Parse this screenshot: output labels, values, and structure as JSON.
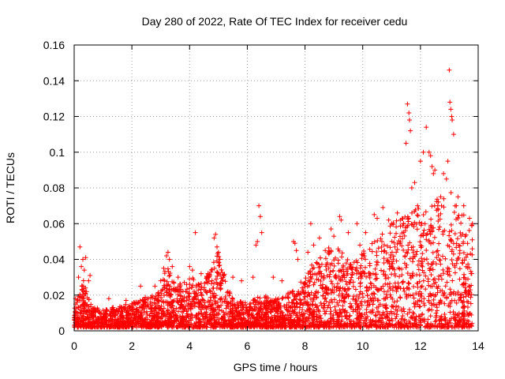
{
  "chart_data": {
    "type": "scatter",
    "title": "Day 280 of 2022, Rate Of TEC Index for receiver cedu",
    "xlabel": "GPS time / hours",
    "ylabel": "ROTI / TECUs",
    "xlim": [
      0,
      14
    ],
    "ylim": [
      0,
      0.16
    ],
    "x_ticks": [
      "0",
      "2",
      "4",
      "6",
      "8",
      "10",
      "12",
      "14"
    ],
    "y_ticks": [
      "0",
      "0.02",
      "0.04",
      "0.06",
      "0.08",
      "0.1",
      "0.12",
      "0.14",
      "0.16"
    ],
    "grid": true,
    "marker": "+",
    "color": "#ff0000",
    "envelope": {
      "x": [
        0,
        0.3,
        0.6,
        1,
        2,
        3,
        3.2,
        3.5,
        4,
        4.5,
        5,
        5.5,
        6,
        6.5,
        7,
        7.5,
        8,
        8.5,
        9,
        9.5,
        10,
        10.5,
        11,
        11.5,
        12,
        12.5,
        13,
        13.5,
        13.8
      ],
      "base_max": [
        0.012,
        0.03,
        0.014,
        0.012,
        0.016,
        0.022,
        0.04,
        0.025,
        0.03,
        0.028,
        0.045,
        0.018,
        0.016,
        0.02,
        0.018,
        0.022,
        0.03,
        0.045,
        0.05,
        0.04,
        0.045,
        0.055,
        0.06,
        0.065,
        0.07,
        0.075,
        0.08,
        0.065,
        0.06
      ]
    },
    "series": [
      {
        "x": [
          0.05,
          0.1,
          0.15,
          0.2,
          0.25,
          0.3,
          0.35,
          0.4,
          0.5,
          0.55,
          1.2,
          1.8,
          2.3,
          2.8,
          3.0,
          3.1,
          3.2,
          3.25,
          3.3,
          3.4,
          3.6,
          3.9,
          4.0,
          4.1,
          4.2,
          4.4,
          4.6,
          4.85,
          4.9,
          4.95,
          5.0,
          5.05,
          5.5,
          5.8,
          6.2,
          6.3,
          6.35,
          6.4,
          6.45,
          6.5,
          6.9,
          7.2,
          7.6,
          7.65,
          7.7,
          7.75,
          8.1,
          8.2,
          8.3,
          8.5,
          8.7,
          8.9,
          9.0,
          9.2,
          9.25,
          9.5,
          9.8,
          9.9,
          10.1,
          10.4,
          10.5,
          10.7,
          10.9,
          11.0,
          11.2,
          11.3,
          11.5,
          11.55,
          11.6,
          11.62,
          11.65,
          11.7,
          11.8,
          11.9,
          12.0,
          12.1,
          12.2,
          12.3,
          12.35,
          12.4,
          12.45,
          12.5,
          12.6,
          12.7,
          12.8,
          12.9,
          12.95,
          13.0,
          13.02,
          13.05,
          13.08,
          13.1,
          13.15,
          13.3,
          13.5,
          13.7,
          13.8
        ],
        "y": [
          0.018,
          0.016,
          0.03,
          0.047,
          0.036,
          0.04,
          0.034,
          0.041,
          0.028,
          0.031,
          0.018,
          0.017,
          0.025,
          0.025,
          0.028,
          0.035,
          0.042,
          0.044,
          0.04,
          0.036,
          0.03,
          0.026,
          0.036,
          0.034,
          0.055,
          0.032,
          0.03,
          0.052,
          0.054,
          0.047,
          0.044,
          0.04,
          0.03,
          0.028,
          0.03,
          0.048,
          0.05,
          0.07,
          0.064,
          0.055,
          0.03,
          0.028,
          0.05,
          0.049,
          0.045,
          0.04,
          0.044,
          0.06,
          0.048,
          0.052,
          0.045,
          0.057,
          0.053,
          0.064,
          0.062,
          0.055,
          0.06,
          0.048,
          0.055,
          0.065,
          0.063,
          0.069,
          0.062,
          0.06,
          0.066,
          0.062,
          0.105,
          0.127,
          0.122,
          0.118,
          0.112,
          0.08,
          0.083,
          0.07,
          0.095,
          0.1,
          0.114,
          0.1,
          0.098,
          0.092,
          0.088,
          0.09,
          0.07,
          0.075,
          0.088,
          0.085,
          0.095,
          0.146,
          0.128,
          0.124,
          0.12,
          0.118,
          0.11,
          0.075,
          0.07,
          0.063,
          0.06
        ]
      }
    ]
  }
}
